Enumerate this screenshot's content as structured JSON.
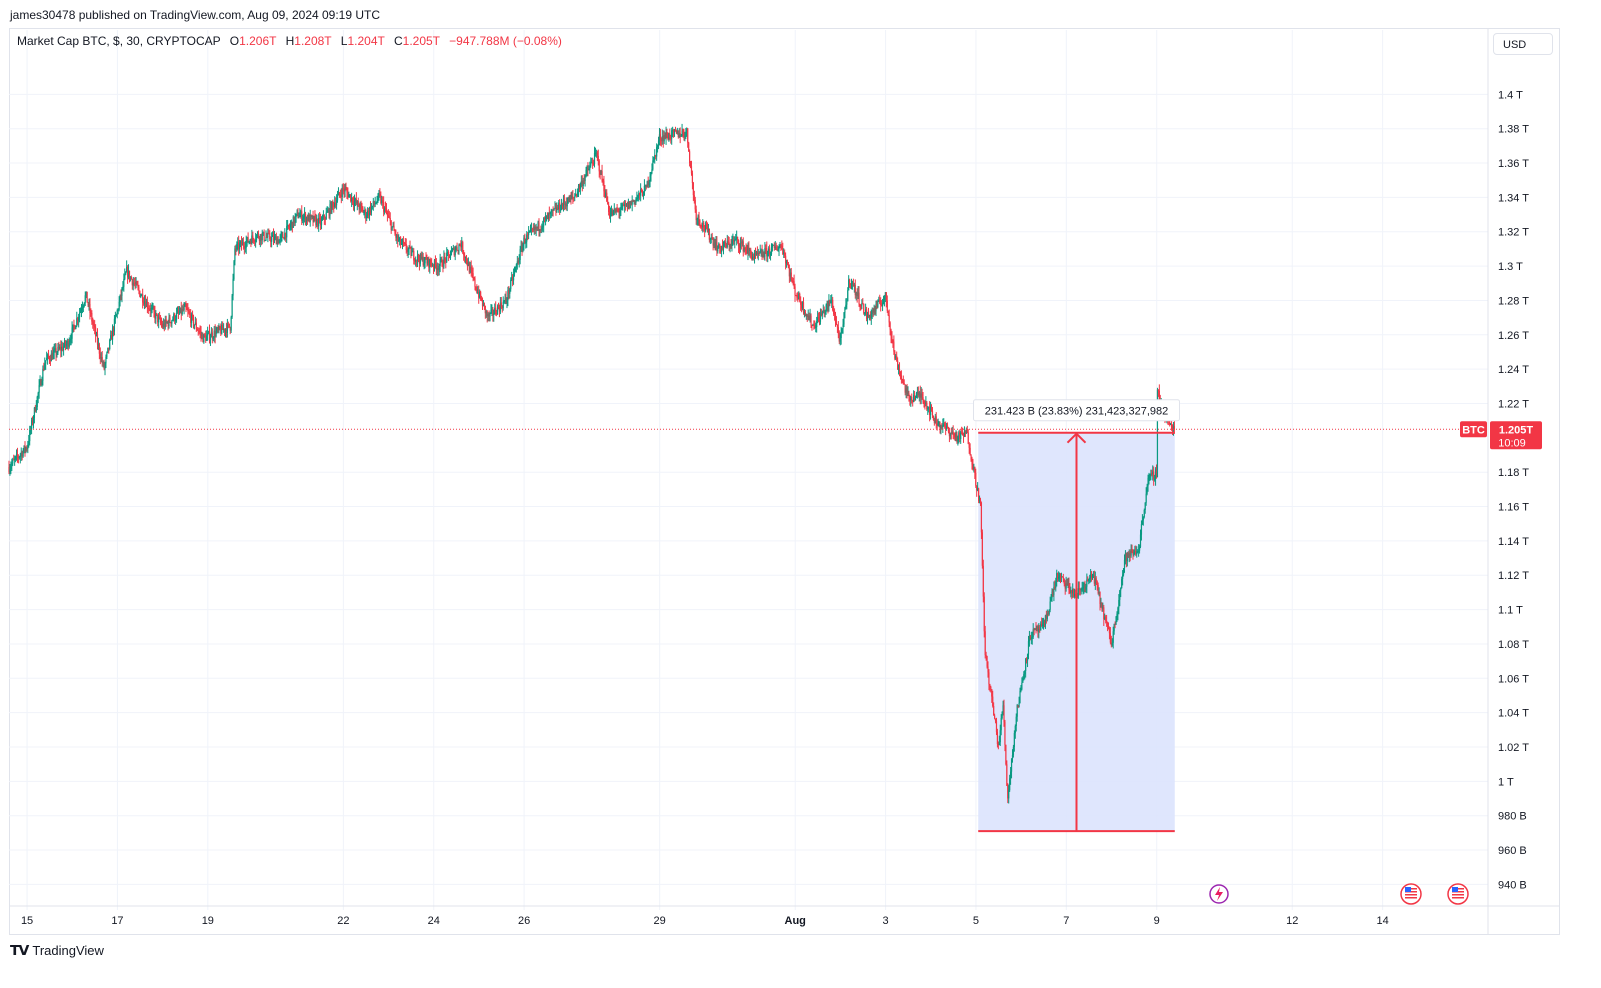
{
  "header": {
    "published": "james30478 published on TradingView.com, Aug 09, 2024 09:19 UTC"
  },
  "legend": {
    "symbol": "Market Cap BTC, $, 30, CRYPTOCAP",
    "o_label": "O",
    "o_value": "1.206T",
    "h_label": "H",
    "h_value": "1.208T",
    "l_label": "L",
    "l_value": "1.204T",
    "c_label": "C",
    "c_value": "1.205T",
    "change": "−947.788M (−0.08%)"
  },
  "currency": "USD",
  "price_tag": {
    "symbol": "BTC",
    "price": "1.205T",
    "countdown": "10:09",
    "color": "#f23645"
  },
  "measure": {
    "label": "231.423 B (23.83%) 231,423,327,982",
    "fill": "#dbe3fd",
    "line_color": "#f23645"
  },
  "footer": {
    "brand": "TradingView",
    "logo_icon": "tradingview-logo-icon"
  },
  "colors": {
    "up": "#089981",
    "down": "#f23645",
    "grid": "#f0f3fa"
  },
  "icons": [
    "lightning-event-icon",
    "us-flag-event-icon",
    "us-flag-event-icon"
  ],
  "chart_data": {
    "type": "candlestick",
    "title": "Market Cap BTC, $, 30, CRYPTOCAP",
    "xlabel": "",
    "ylabel": "",
    "y_unit": "USD",
    "y_ticks": [
      "940 B",
      "960 B",
      "980 B",
      "1 T",
      "1.02 T",
      "1.04 T",
      "1.06 T",
      "1.08 T",
      "1.1 T",
      "1.12 T",
      "1.14 T",
      "1.16 T",
      "1.18 T",
      "1.22 T",
      "1.24 T",
      "1.26 T",
      "1.28 T",
      "1.3 T",
      "1.32 T",
      "1.34 T",
      "1.36 T",
      "1.38 T",
      "1.4 T"
    ],
    "y_tick_values": [
      940,
      960,
      980,
      1000,
      1020,
      1040,
      1060,
      1080,
      1100,
      1120,
      1140,
      1160,
      1180,
      1220,
      1240,
      1260,
      1280,
      1300,
      1320,
      1340,
      1360,
      1380,
      1400
    ],
    "ylim": [
      928,
      1420
    ],
    "x_ticks": [
      "15",
      "17",
      "19",
      "22",
      "24",
      "26",
      "29",
      "Aug",
      "3",
      "5",
      "7",
      "9",
      "12",
      "14"
    ],
    "x_tick_days": [
      15,
      17,
      19,
      22,
      24,
      26,
      29,
      32,
      34,
      36,
      38,
      40,
      43,
      45
    ],
    "xlim": [
      14.6,
      46.6
    ],
    "x_unit": "day (July 2024; 32 = Aug 1)",
    "last_price": 1205,
    "measure_range": {
      "x_start": 36.05,
      "x_end": 40.4,
      "y_low": 971,
      "y_high": 1203,
      "change_B": 231.423,
      "change_pct": 23.83
    },
    "path_anchors": [
      [
        14.6,
        1183
      ],
      [
        15.0,
        1195
      ],
      [
        15.4,
        1245
      ],
      [
        15.9,
        1255
      ],
      [
        16.3,
        1283
      ],
      [
        16.7,
        1240
      ],
      [
        17.2,
        1297
      ],
      [
        17.6,
        1280
      ],
      [
        18.0,
        1265
      ],
      [
        18.5,
        1275
      ],
      [
        18.9,
        1258
      ],
      [
        19.5,
        1265
      ],
      [
        19.6,
        1310
      ],
      [
        20.1,
        1318
      ],
      [
        20.6,
        1315
      ],
      [
        21.0,
        1330
      ],
      [
        21.5,
        1325
      ],
      [
        22.0,
        1345
      ],
      [
        22.5,
        1330
      ],
      [
        22.8,
        1340
      ],
      [
        23.2,
        1315
      ],
      [
        23.6,
        1305
      ],
      [
        24.1,
        1300
      ],
      [
        24.6,
        1313
      ],
      [
        24.9,
        1290
      ],
      [
        25.2,
        1270
      ],
      [
        25.6,
        1280
      ],
      [
        26.0,
        1315
      ],
      [
        26.4,
        1325
      ],
      [
        26.8,
        1335
      ],
      [
        27.1,
        1340
      ],
      [
        27.6,
        1365
      ],
      [
        27.9,
        1330
      ],
      [
        28.3,
        1335
      ],
      [
        28.7,
        1345
      ],
      [
        29.0,
        1375
      ],
      [
        29.6,
        1378
      ],
      [
        29.8,
        1330
      ],
      [
        30.3,
        1310
      ],
      [
        30.7,
        1315
      ],
      [
        31.1,
        1305
      ],
      [
        31.7,
        1312
      ],
      [
        32.0,
        1285
      ],
      [
        32.4,
        1265
      ],
      [
        32.8,
        1280
      ],
      [
        33.0,
        1255
      ],
      [
        33.2,
        1293
      ],
      [
        33.6,
        1270
      ],
      [
        34.0,
        1282
      ],
      [
        34.2,
        1248
      ],
      [
        34.5,
        1223
      ],
      [
        34.8,
        1225
      ],
      [
        35.1,
        1210
      ],
      [
        35.6,
        1200
      ],
      [
        35.8,
        1203
      ],
      [
        36.1,
        1160
      ],
      [
        36.2,
        1075
      ],
      [
        36.5,
        1020
      ],
      [
        36.6,
        1045
      ],
      [
        36.7,
        990
      ],
      [
        36.9,
        1040
      ],
      [
        37.2,
        1085
      ],
      [
        37.5,
        1090
      ],
      [
        37.8,
        1120
      ],
      [
        38.2,
        1108
      ],
      [
        38.6,
        1120
      ],
      [
        38.8,
        1100
      ],
      [
        39.0,
        1080
      ],
      [
        39.3,
        1130
      ],
      [
        39.6,
        1135
      ],
      [
        39.8,
        1175
      ],
      [
        40.0,
        1180
      ],
      [
        40.0,
        1230
      ],
      [
        40.2,
        1210
      ],
      [
        40.4,
        1205
      ]
    ]
  }
}
